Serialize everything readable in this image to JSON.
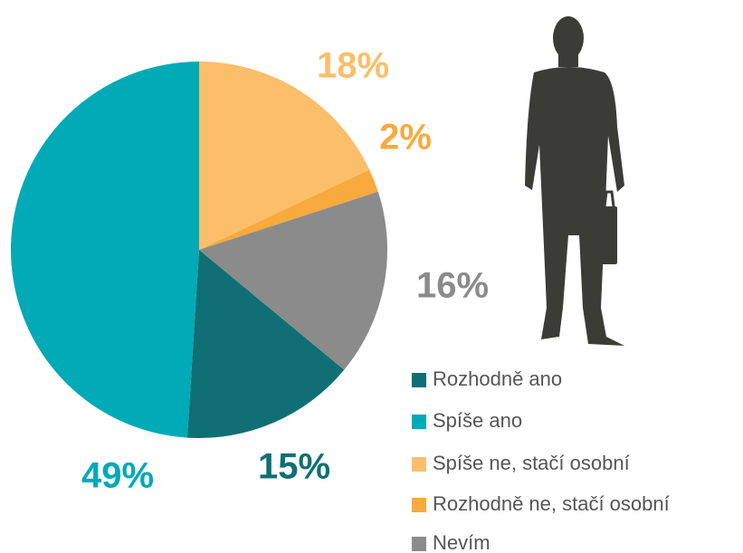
{
  "chart_data": {
    "type": "pie",
    "categories": [
      "Rozhodně ano",
      "Spíše ano",
      "Spíše ne, stačí osobní",
      "Rozhodně ne, stačí osobní",
      "Nevím"
    ],
    "values": [
      15,
      49,
      18,
      2,
      16
    ],
    "value_labels": [
      "15%",
      "49%",
      "18%",
      "2%",
      "16%"
    ],
    "colors": [
      "#0f6f74",
      "#00aab6",
      "#fbbe6a",
      "#f8aa3c",
      "#8b8b8b"
    ]
  }
}
